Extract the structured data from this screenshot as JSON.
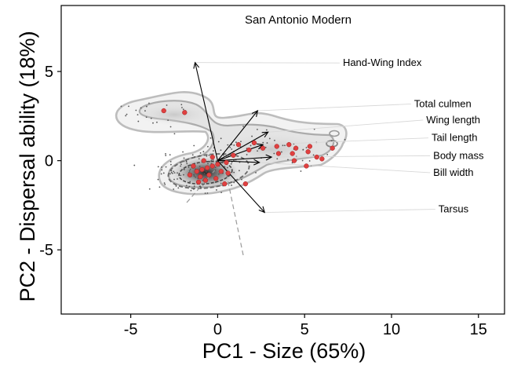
{
  "chart_data": {
    "type": "scatter",
    "title": "San Antonio Modern",
    "xlabel": "PC1 - Size (65%)",
    "ylabel": "PC2 - Dispersal ability (18%)",
    "xlim": [
      -9,
      16.5
    ],
    "ylim": [
      -8.6,
      8.7
    ],
    "xticks": [
      "-5",
      "0",
      "5",
      "10",
      "15"
    ],
    "yticks": [
      "5",
      "0",
      "-5"
    ],
    "grid": false,
    "loadings": [
      {
        "name": "Hand-Wing Index",
        "x": -1.3,
        "y": 5.5,
        "label_x": 7.2,
        "label_y": 5.3
      },
      {
        "name": "Total culmen",
        "x": 2.3,
        "y": 2.8,
        "label_x": 11.3,
        "label_y": 3.0
      },
      {
        "name": "Wing length",
        "x": 2.9,
        "y": 1.6,
        "label_x": 12.0,
        "label_y": 2.1
      },
      {
        "name": "Tail length",
        "x": 2.6,
        "y": 0.9,
        "label_x": 12.3,
        "label_y": 1.1
      },
      {
        "name": "Body mass",
        "x": 3.1,
        "y": 0.2,
        "label_x": 12.4,
        "label_y": 0.1
      },
      {
        "name": "Bill width",
        "x": 2.4,
        "y": -0.1,
        "label_x": 12.4,
        "label_y": -0.85
      },
      {
        "name": "Tarsus",
        "x": 2.7,
        "y": -2.9,
        "label_x": 12.7,
        "label_y": -2.9
      }
    ],
    "modern_points": [
      {
        "x": -3.1,
        "y": 2.8
      },
      {
        "x": -1.9,
        "y": 2.7
      },
      {
        "x": 1.2,
        "y": 0.9
      },
      {
        "x": 1.8,
        "y": 0.6
      },
      {
        "x": 2.1,
        "y": 1.0
      },
      {
        "x": 2.6,
        "y": 0.7
      },
      {
        "x": 3.4,
        "y": 0.8
      },
      {
        "x": 3.5,
        "y": 0.4
      },
      {
        "x": 4.1,
        "y": 0.9
      },
      {
        "x": 4.3,
        "y": 0.4
      },
      {
        "x": 4.5,
        "y": 0.7
      },
      {
        "x": 5.2,
        "y": 0.5
      },
      {
        "x": 5.7,
        "y": 0.2
      },
      {
        "x": 6.6,
        "y": 0.7
      },
      {
        "x": 5.3,
        "y": 0.8
      },
      {
        "x": 6.0,
        "y": 0.1
      },
      {
        "x": 4.4,
        "y": 0.0
      },
      {
        "x": 5.1,
        "y": -0.3
      },
      {
        "x": 0.5,
        "y": -0.1
      },
      {
        "x": 0.0,
        "y": -0.2
      },
      {
        "x": -0.3,
        "y": -0.3
      },
      {
        "x": -0.6,
        "y": -0.4
      },
      {
        "x": -0.9,
        "y": -0.5
      },
      {
        "x": -1.0,
        "y": -0.9
      },
      {
        "x": -1.2,
        "y": -0.6
      },
      {
        "x": -1.4,
        "y": -0.3
      },
      {
        "x": -0.5,
        "y": -0.8
      },
      {
        "x": 0.2,
        "y": -0.6
      },
      {
        "x": -0.1,
        "y": -1.0
      },
      {
        "x": -0.7,
        "y": -1.1
      },
      {
        "x": -1.1,
        "y": -1.2
      },
      {
        "x": 0.9,
        "y": 0.3
      },
      {
        "x": -0.3,
        "y": 0.2
      },
      {
        "x": 0.4,
        "y": -1.3
      },
      {
        "x": 0.6,
        "y": -0.7
      },
      {
        "x": 1.6,
        "y": -1.3
      },
      {
        "x": -0.8,
        "y": 0.0
      },
      {
        "x": -1.6,
        "y": -0.8
      }
    ]
  },
  "colors": {
    "modern_points": "#e04040",
    "background_points": "#555555",
    "contour": "#9a9a9a",
    "arrow": "#000000",
    "leader": "#d8d8d8"
  }
}
